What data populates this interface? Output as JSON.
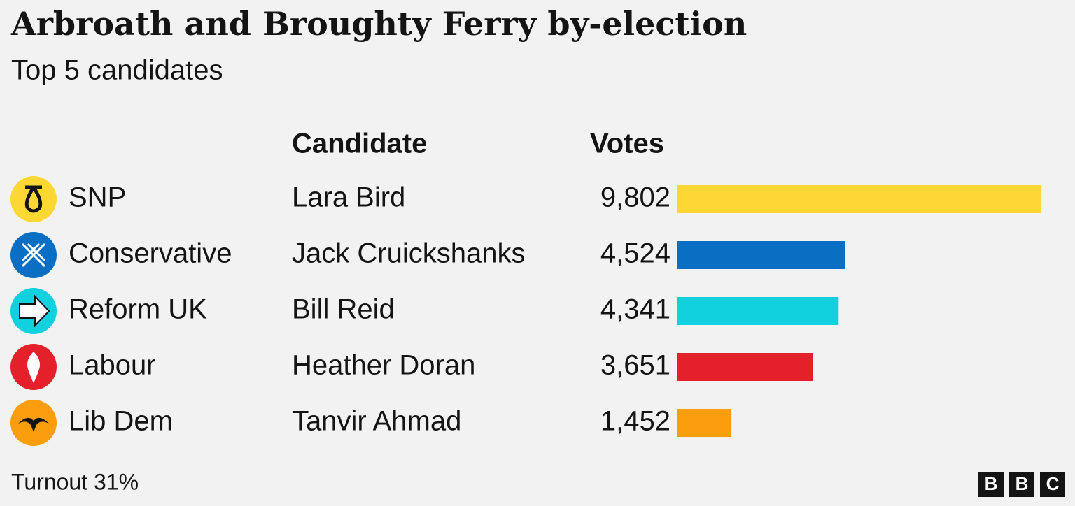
{
  "chart_data": {
    "type": "bar",
    "title": "Arbroath and Broughty Ferry by-election",
    "subtitle": "Top 5 candidates",
    "column_headers": [
      "Candidate",
      "Votes"
    ],
    "categories": [
      "SNP",
      "Conservative",
      "Reform UK",
      "Labour",
      "Lib Dem"
    ],
    "candidates": [
      "Lara Bird",
      "Jack Cruickshanks",
      "Bill Reid",
      "Heather Doran",
      "Tanvir Ahmad"
    ],
    "values": [
      9802,
      4524,
      4341,
      3651,
      1452
    ],
    "value_labels": [
      "9,802",
      "4,524",
      "4,341",
      "3,651",
      "1,452"
    ],
    "colors": [
      "#fdd835",
      "#0a6fc2",
      "#12d1df",
      "#e4202a",
      "#fa9e0d"
    ],
    "footnote": "Turnout 31%",
    "logo": [
      "B",
      "B",
      "C"
    ]
  }
}
